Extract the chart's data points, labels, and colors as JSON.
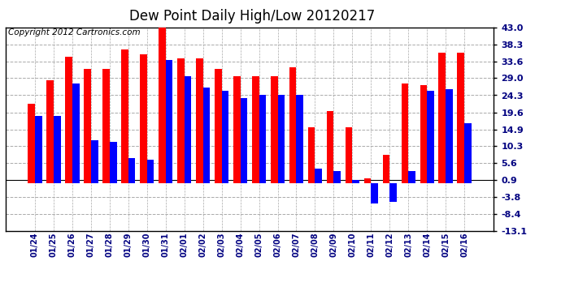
{
  "title": "Dew Point Daily High/Low 20120217",
  "copyright": "Copyright 2012 Cartronics.com",
  "dates": [
    "01/24",
    "01/25",
    "01/26",
    "01/27",
    "01/28",
    "01/29",
    "01/30",
    "01/31",
    "02/01",
    "02/02",
    "02/03",
    "02/04",
    "02/05",
    "02/06",
    "02/07",
    "02/08",
    "02/09",
    "02/10",
    "02/11",
    "02/12",
    "02/13",
    "02/14",
    "02/15",
    "02/16"
  ],
  "highs": [
    22.0,
    28.5,
    35.0,
    31.5,
    31.5,
    37.0,
    35.5,
    43.0,
    34.5,
    34.5,
    31.5,
    29.5,
    29.5,
    29.5,
    32.0,
    15.5,
    20.0,
    15.5,
    1.5,
    8.0,
    27.5,
    27.0,
    36.0,
    36.0
  ],
  "lows": [
    18.5,
    18.5,
    27.5,
    12.0,
    11.5,
    7.0,
    6.5,
    34.0,
    29.5,
    26.5,
    25.5,
    23.5,
    24.5,
    24.5,
    24.5,
    4.0,
    3.5,
    0.9,
    -5.5,
    -5.0,
    3.5,
    25.5,
    26.0,
    16.5
  ],
  "high_color": "#ff0000",
  "low_color": "#0000ff",
  "background_color": "#ffffff",
  "grid_color": "#aaaaaa",
  "ylim": [
    -13.1,
    43.0
  ],
  "yticks": [
    43.0,
    38.3,
    33.6,
    29.0,
    24.3,
    19.6,
    14.9,
    10.3,
    5.6,
    0.9,
    -3.8,
    -8.4,
    -13.1
  ],
  "title_fontsize": 12,
  "copyright_fontsize": 7.5,
  "bar_width": 0.38
}
